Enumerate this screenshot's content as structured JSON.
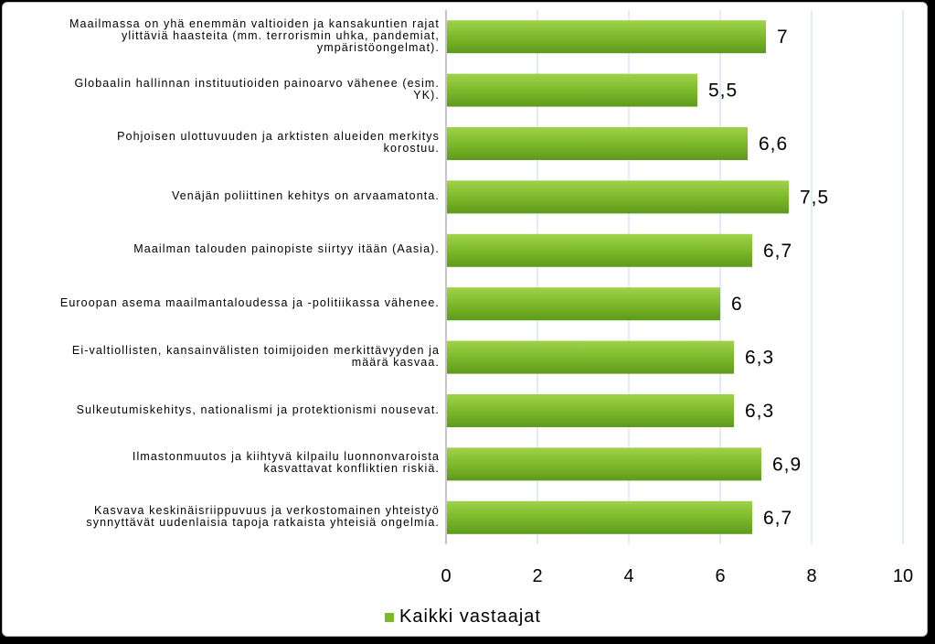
{
  "chart_data": {
    "type": "bar",
    "orientation": "horizontal",
    "categories": [
      "Maailmassa on yhä enemmän valtioiden ja kansakuntien rajat ylittäviä haasteita (mm. terrorismin uhka, pandemiat, ympäristöongelmat).",
      "Globaalin hallinnan instituutioiden painoarvo vähenee (esim. YK).",
      "Pohjoisen ulottuvuuden ja arktisten alueiden merkitys korostuu.",
      "Venäjän poliittinen kehitys on arvaamatonta.",
      "Maailman talouden painopiste siirtyy itään (Aasia).",
      "Euroopan asema maailmantaloudessa ja -politiikassa vähenee.",
      "Ei-valtiollisten, kansainvälisten toimijoiden merkittävyyden ja määrä kasvaa.",
      "Sulkeutumiskehitys, nationalismi ja protektionismi nousevat.",
      "Ilmastonmuutos ja kiihtyvä kilpailu luonnonvaroista kasvattavat konfliktien riskiä.",
      "Kasvava keskinäisriippuvuus ja verkostomainen yhteistyö synnyttävät uudenlaisia tapoja ratkaista yhteisiä ongelmia."
    ],
    "category_lines": [
      [
        "Maailmassa on yhä enemmän valtioiden ja kansakuntien rajat",
        "ylittäviä haasteita (mm. terrorismin uhka, pandemiat,",
        "ympäristöongelmat)."
      ],
      [
        "Globaalin hallinnan instituutioiden painoarvo vähenee (esim.",
        "YK)."
      ],
      [
        "Pohjoisen ulottuvuuden ja arktisten alueiden merkitys",
        "korostuu."
      ],
      [
        "Venäjän poliittinen kehitys on arvaamatonta."
      ],
      [
        "Maailman talouden painopiste siirtyy itään (Aasia)."
      ],
      [
        "Euroopan asema maailmantaloudessa ja -politiikassa vähenee."
      ],
      [
        "Ei-valtiollisten, kansainvälisten toimijoiden merkittävyyden ja",
        "määrä kasvaa."
      ],
      [
        "Sulkeutumiskehitys, nationalismi ja protektionismi nousevat."
      ],
      [
        "Ilmastonmuutos ja kiihtyvä kilpailu luonnonvaroista",
        "kasvattavat konfliktien riskiä."
      ],
      [
        "Kasvava keskinäisriippuvuus ja verkostomainen yhteistyö",
        "synnyttävät uudenlaisia tapoja ratkaista yhteisiä ongelmia."
      ]
    ],
    "series": [
      {
        "name": "Kaikki vastaajat",
        "values": [
          7,
          5.5,
          6.6,
          7.5,
          6.7,
          6,
          6.3,
          6.3,
          6.9,
          6.7
        ],
        "value_labels": [
          "7",
          "5,5",
          "6,6",
          "7,5",
          "6,7",
          "6",
          "6,3",
          "6,3",
          "6,9",
          "6,7"
        ],
        "color": "#7dba2a"
      }
    ],
    "xlim": [
      0,
      10
    ],
    "x_ticks": [
      "0",
      "2",
      "4",
      "6",
      "8",
      "10"
    ],
    "grid": true,
    "gridline_color": "#c6d9f1",
    "legend_position": "bottom"
  }
}
